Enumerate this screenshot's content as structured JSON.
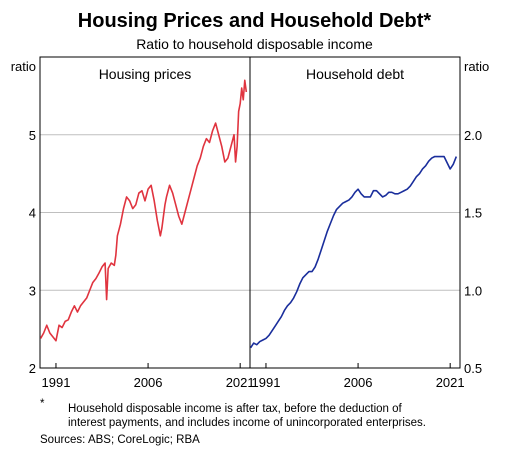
{
  "title": "Housing Prices and Household Debt*",
  "subtitle": "Ratio to household disposable income",
  "colors": {
    "housing": "#e0343f",
    "debt": "#1a2e9c",
    "grid": "#bfbfbf",
    "frame": "#000000"
  },
  "footnote": {
    "marker": "*",
    "line1": "Household disposable income is after tax, before the deduction of",
    "line2": "interest payments, and includes income of unincorporated enterprises."
  },
  "sources": "Sources: ABS; CoreLogic; RBA",
  "chart_data": [
    {
      "type": "line",
      "title": "Housing prices",
      "ylabel": "ratio",
      "ylim": [
        2,
        6
      ],
      "yticks": [
        "2",
        "3",
        "4",
        "5"
      ],
      "xlim": [
        1988.4,
        2022.6
      ],
      "xticks": [
        "1991",
        "2006",
        "2021"
      ],
      "grid": true,
      "series": [
        {
          "x": [
            1988.5,
            1989,
            1989.5,
            1990,
            1990.5,
            1991,
            1991.5,
            1992,
            1992.5,
            1993,
            1993.5,
            1994,
            1994.5,
            1995,
            1995.5,
            1996,
            1996.5,
            1997,
            1997.5,
            1998,
            1998.5,
            1999,
            1999.25,
            1999.5,
            2000,
            2000.5,
            2000.75,
            2001,
            2001.5,
            2002,
            2002.5,
            2003,
            2003.5,
            2004,
            2004.5,
            2005,
            2005.5,
            2006,
            2006.5,
            2007,
            2007.5,
            2008,
            2008.25,
            2008.5,
            2008.75,
            2009,
            2009.5,
            2010,
            2010.5,
            2011,
            2011.5,
            2012,
            2012.5,
            2013,
            2013.5,
            2014,
            2014.5,
            2015,
            2015.5,
            2016,
            2016.5,
            2017,
            2017.5,
            2018,
            2018.5,
            2019,
            2019.5,
            2020,
            2020.25,
            2020.5,
            2020.75,
            2021,
            2021.25,
            2021.5,
            2021.75,
            2022
          ],
          "values": [
            2.38,
            2.45,
            2.55,
            2.45,
            2.4,
            2.35,
            2.55,
            2.52,
            2.6,
            2.62,
            2.72,
            2.8,
            2.72,
            2.8,
            2.85,
            2.9,
            3.0,
            3.1,
            3.15,
            3.22,
            3.3,
            3.35,
            2.88,
            3.28,
            3.35,
            3.32,
            3.45,
            3.7,
            3.85,
            4.05,
            4.2,
            4.15,
            4.05,
            4.1,
            4.25,
            4.28,
            4.15,
            4.3,
            4.35,
            4.15,
            3.9,
            3.7,
            3.8,
            3.95,
            4.1,
            4.2,
            4.35,
            4.25,
            4.1,
            3.95,
            3.85,
            4.0,
            4.15,
            4.3,
            4.45,
            4.6,
            4.7,
            4.85,
            4.95,
            4.9,
            5.05,
            5.15,
            5.0,
            4.85,
            4.65,
            4.7,
            4.85,
            5.0,
            4.65,
            4.85,
            5.3,
            5.4,
            5.6,
            5.45,
            5.7,
            5.55
          ]
        }
      ]
    },
    {
      "type": "line",
      "title": "Household debt",
      "ylabel": "ratio",
      "ylim": [
        0.5,
        2.5
      ],
      "yticks": [
        "0.5",
        "1.0",
        "1.5",
        "2.0"
      ],
      "xlim": [
        1988.4,
        2022.6
      ],
      "xticks": [
        "1991",
        "2006",
        "2021"
      ],
      "grid": true,
      "series": [
        {
          "x": [
            1988.5,
            1989,
            1989.5,
            1990,
            1990.5,
            1991,
            1991.5,
            1992,
            1992.5,
            1993,
            1993.5,
            1994,
            1994.5,
            1995,
            1995.5,
            1996,
            1996.5,
            1997,
            1997.5,
            1998,
            1998.5,
            1999,
            1999.5,
            2000,
            2000.5,
            2001,
            2001.5,
            2002,
            2002.5,
            2003,
            2003.5,
            2004,
            2004.5,
            2005,
            2005.5,
            2006,
            2006.5,
            2007,
            2007.5,
            2008,
            2008.5,
            2009,
            2009.5,
            2010,
            2010.5,
            2011,
            2011.5,
            2012,
            2012.5,
            2013,
            2013.5,
            2014,
            2014.5,
            2015,
            2015.5,
            2016,
            2016.5,
            2017,
            2017.5,
            2018,
            2018.5,
            2019,
            2019.5,
            2020,
            2020.5,
            2021,
            2021.5,
            2022
          ],
          "values": [
            0.63,
            0.66,
            0.65,
            0.67,
            0.68,
            0.69,
            0.71,
            0.74,
            0.77,
            0.8,
            0.83,
            0.87,
            0.9,
            0.92,
            0.95,
            0.99,
            1.04,
            1.08,
            1.1,
            1.12,
            1.12,
            1.15,
            1.2,
            1.26,
            1.32,
            1.38,
            1.43,
            1.48,
            1.52,
            1.54,
            1.56,
            1.57,
            1.58,
            1.6,
            1.63,
            1.65,
            1.62,
            1.6,
            1.6,
            1.6,
            1.64,
            1.64,
            1.62,
            1.6,
            1.61,
            1.63,
            1.63,
            1.62,
            1.62,
            1.63,
            1.64,
            1.65,
            1.67,
            1.7,
            1.73,
            1.75,
            1.78,
            1.8,
            1.83,
            1.85,
            1.86,
            1.86,
            1.86,
            1.86,
            1.82,
            1.78,
            1.81,
            1.86
          ]
        }
      ]
    }
  ]
}
